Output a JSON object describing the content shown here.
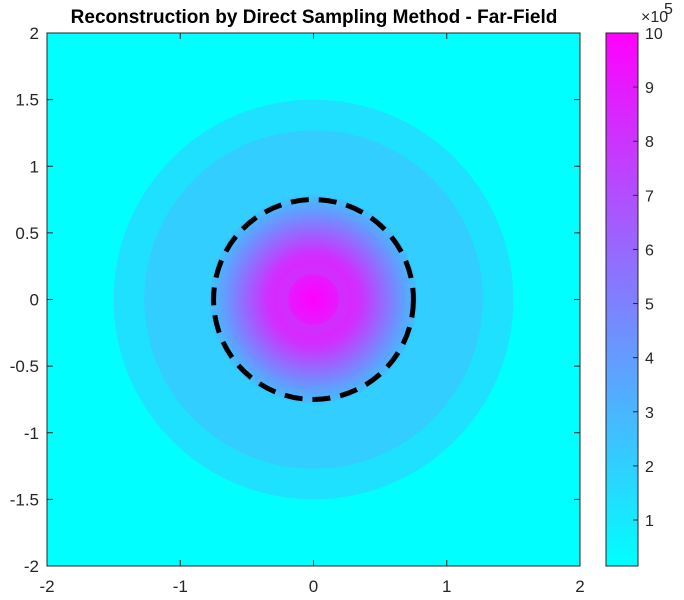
{
  "chart_data": {
    "type": "heatmap",
    "title": "Reconstruction by Direct Sampling Method - Far-Field",
    "xlim": [
      -2,
      2
    ],
    "ylim": [
      -2,
      2
    ],
    "xticks": [
      "-2",
      "-1",
      "0",
      "1",
      "2"
    ],
    "yticks": [
      "2",
      "1.5",
      "1",
      "0.5",
      "0",
      "-0.5",
      "-1",
      "-1.5",
      "-2"
    ],
    "colorbar": {
      "range": [
        0.15,
        10
      ],
      "ticks": [
        "10",
        "9",
        "8",
        "7",
        "6",
        "5",
        "4",
        "3",
        "2",
        "1"
      ],
      "multiplier": "×10",
      "exponent": "5",
      "colormap": [
        "#00ffff",
        "#ff00ff"
      ]
    },
    "field_regions": [
      {
        "shape": "disk",
        "center": [
          0,
          0
        ],
        "radius": 1.5,
        "value": 1.3
      },
      {
        "shape": "disk",
        "center": [
          0,
          0
        ],
        "radius": 1.27,
        "value": 2.05
      },
      {
        "shape": "gradient-disk",
        "center": [
          0,
          0
        ],
        "radius": 0.78,
        "value_center": 10.0,
        "value_edge": 2.5
      },
      {
        "shape": "ring",
        "center": [
          0,
          0
        ],
        "inner_radius": 0.19,
        "outer_radius": 0.27,
        "value": 8.3
      }
    ],
    "background_value": 0.15,
    "true_boundary": {
      "shape": "circle",
      "center": [
        0,
        0
      ],
      "radius": 0.75,
      "style": "dashed",
      "color": "#000000"
    }
  }
}
